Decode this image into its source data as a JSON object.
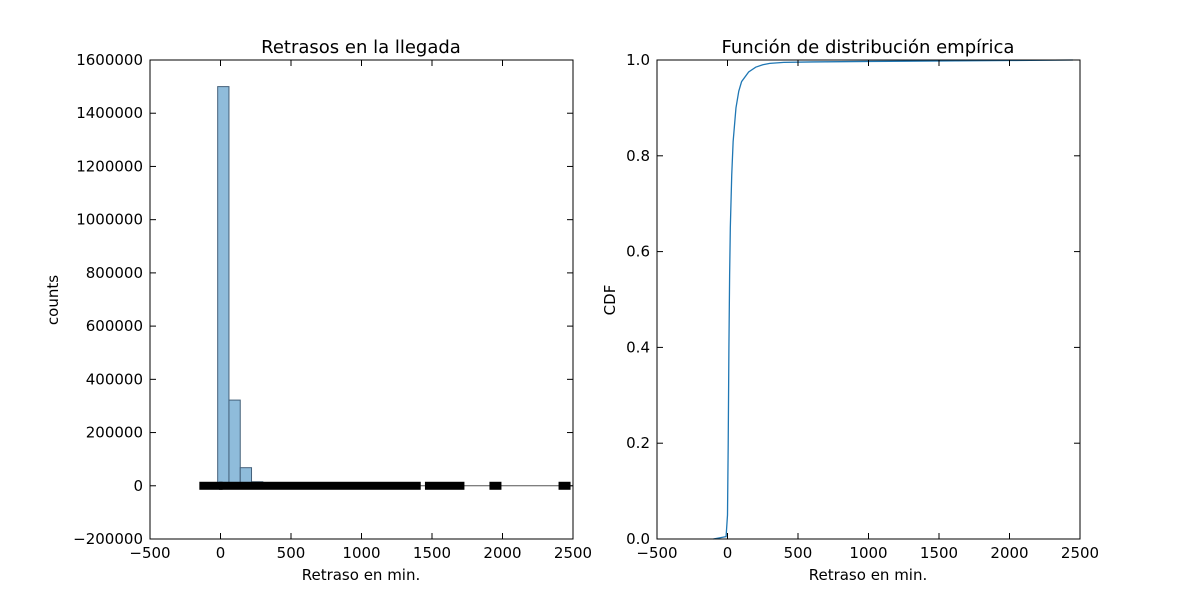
{
  "chart_data": [
    {
      "type": "bar",
      "title": "Retrasos en la llegada",
      "xlabel": "Retraso en min.",
      "ylabel": "counts",
      "xlim": [
        -500,
        2500
      ],
      "ylim": [
        -200000,
        1600000
      ],
      "xticks": [
        "−500",
        "0",
        "500",
        "1000",
        "1500",
        "2000",
        "2500"
      ],
      "xtick_values": [
        -500,
        0,
        500,
        1000,
        1500,
        2000,
        2500
      ],
      "yticks": [
        "−200000",
        "0",
        "200000",
        "400000",
        "600000",
        "800000",
        "1000000",
        "1200000",
        "1400000",
        "1600000"
      ],
      "ytick_values": [
        -200000,
        0,
        200000,
        400000,
        600000,
        800000,
        1000000,
        1200000,
        1400000,
        1600000
      ],
      "bin_edges": [
        -100,
        -20,
        60,
        140,
        220,
        300,
        380,
        460,
        540,
        620,
        700
      ],
      "values": [
        2000,
        1500000,
        322000,
        68000,
        15000,
        5000,
        2500,
        1500,
        900,
        500
      ],
      "bar_color": "#8fbcdb",
      "bar_edge_color": "#44607a",
      "boxplot": {
        "q1": -10,
        "median": 0,
        "q3": 15,
        "whisker_low": -60,
        "whisker_high": 2500,
        "outlier_ranges": [
          [
            -150,
            1420
          ],
          [
            1450,
            1730
          ]
        ],
        "outliers": [
          1950,
          2440
        ]
      }
    },
    {
      "type": "line",
      "title": "Función de distribución empírica",
      "xlabel": "Retraso en min.",
      "ylabel": "CDF",
      "xlim": [
        -500,
        2500
      ],
      "ylim": [
        0,
        1
      ],
      "xticks": [
        "−500",
        "0",
        "500",
        "1000",
        "1500",
        "2000",
        "2500"
      ],
      "xtick_values": [
        -500,
        0,
        500,
        1000,
        1500,
        2000,
        2500
      ],
      "yticks": [
        "0.0",
        "0.2",
        "0.4",
        "0.6",
        "0.8",
        "1.0"
      ],
      "ytick_values": [
        0,
        0.2,
        0.4,
        0.6,
        0.8,
        1.0
      ],
      "line_color": "#1f77b4",
      "x": [
        -100,
        -10,
        0,
        5,
        10,
        15,
        20,
        30,
        40,
        60,
        80,
        100,
        150,
        200,
        250,
        300,
        400,
        600,
        1000,
        1500,
        2000,
        2450
      ],
      "y": [
        0,
        0.005,
        0.05,
        0.2,
        0.4,
        0.55,
        0.65,
        0.76,
        0.83,
        0.9,
        0.935,
        0.955,
        0.975,
        0.985,
        0.99,
        0.993,
        0.995,
        0.996,
        0.997,
        0.998,
        0.999,
        1.0
      ]
    }
  ]
}
